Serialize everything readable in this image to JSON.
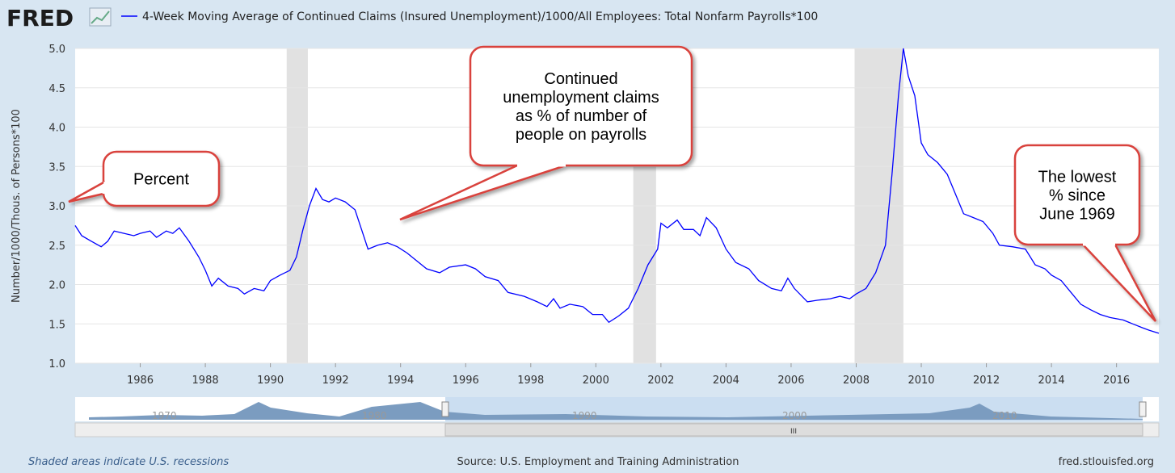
{
  "header": {
    "logo": "FRED"
  },
  "chart_data": {
    "type": "line",
    "y_label": "Number/1000/Thous. of Persons*100",
    "x": [
      1984.0,
      1984.2,
      1984.5,
      1984.8,
      1985.0,
      1985.2,
      1985.5,
      1985.8,
      1986.0,
      1986.3,
      1986.5,
      1986.8,
      1987.0,
      1987.2,
      1987.5,
      1987.8,
      1988.0,
      1988.2,
      1988.4,
      1988.7,
      1989.0,
      1989.2,
      1989.5,
      1989.8,
      1990.0,
      1990.3,
      1990.6,
      1990.8,
      1991.0,
      1991.2,
      1991.4,
      1991.6,
      1991.8,
      1992.0,
      1992.3,
      1992.6,
      1992.8,
      1993.0,
      1993.3,
      1993.6,
      1993.9,
      1994.2,
      1994.5,
      1994.8,
      1995.2,
      1995.5,
      1996.0,
      1996.3,
      1996.6,
      1997.0,
      1997.3,
      1997.8,
      1998.2,
      1998.5,
      1998.7,
      1998.9,
      1999.2,
      1999.6,
      1999.9,
      2000.2,
      2000.4,
      2000.7,
      2001.0,
      2001.3,
      2001.6,
      2001.9,
      2002.0,
      2002.2,
      2002.5,
      2002.7,
      2003.0,
      2003.2,
      2003.4,
      2003.7,
      2004.0,
      2004.3,
      2004.7,
      2005.0,
      2005.4,
      2005.7,
      2005.9,
      2006.1,
      2006.5,
      2006.8,
      2007.2,
      2007.5,
      2007.8,
      2008.0,
      2008.3,
      2008.6,
      2008.9,
      2009.1,
      2009.3,
      2009.45,
      2009.6,
      2009.8,
      2010.0,
      2010.2,
      2010.5,
      2010.8,
      2011.0,
      2011.3,
      2011.6,
      2011.9,
      2012.2,
      2012.4,
      2012.8,
      2013.2,
      2013.5,
      2013.8,
      2014.0,
      2014.3,
      2014.6,
      2014.9,
      2015.2,
      2015.5,
      2015.8,
      2016.2,
      2016.5,
      2016.8,
      2017.0,
      2017.3
    ],
    "series": [
      {
        "name": "4-Week Moving Average of Continued Claims (Insured Unemployment)/1000/All Employees: Total Nonfarm Payrolls*100",
        "color": "#0000ff",
        "values": [
          2.75,
          2.62,
          2.55,
          2.48,
          2.55,
          2.68,
          2.65,
          2.62,
          2.65,
          2.68,
          2.6,
          2.68,
          2.65,
          2.72,
          2.55,
          2.35,
          2.18,
          1.98,
          2.08,
          1.98,
          1.95,
          1.88,
          1.95,
          1.92,
          2.05,
          2.12,
          2.18,
          2.35,
          2.7,
          3.0,
          3.22,
          3.08,
          3.05,
          3.1,
          3.05,
          2.95,
          2.7,
          2.45,
          2.5,
          2.53,
          2.48,
          2.4,
          2.3,
          2.2,
          2.15,
          2.22,
          2.25,
          2.2,
          2.1,
          2.05,
          1.9,
          1.85,
          1.78,
          1.72,
          1.82,
          1.7,
          1.75,
          1.72,
          1.62,
          1.62,
          1.52,
          1.6,
          1.7,
          1.95,
          2.25,
          2.45,
          2.78,
          2.72,
          2.82,
          2.7,
          2.7,
          2.62,
          2.85,
          2.72,
          2.45,
          2.28,
          2.2,
          2.05,
          1.95,
          1.92,
          2.08,
          1.95,
          1.78,
          1.8,
          1.82,
          1.85,
          1.82,
          1.88,
          1.95,
          2.15,
          2.5,
          3.4,
          4.4,
          5.0,
          4.65,
          4.4,
          3.8,
          3.65,
          3.55,
          3.4,
          3.2,
          2.9,
          2.85,
          2.8,
          2.65,
          2.5,
          2.48,
          2.45,
          2.25,
          2.2,
          2.12,
          2.05,
          1.9,
          1.75,
          1.68,
          1.62,
          1.58,
          1.55,
          1.5,
          1.45,
          1.42,
          1.38
        ]
      }
    ],
    "recessions": [
      [
        1990.5,
        1991.15
      ],
      [
        2001.15,
        2001.85
      ],
      [
        2007.95,
        2009.45
      ]
    ],
    "xlim": [
      1984.0,
      2017.3
    ],
    "ylim": [
      1,
      5
    ],
    "xticks": [
      1986,
      1988,
      1990,
      1992,
      1994,
      1996,
      1998,
      2000,
      2002,
      2004,
      2006,
      2008,
      2010,
      2012,
      2014,
      2016
    ],
    "yticks": [
      {
        "value": 1,
        "label": "1.0"
      },
      1.5,
      {
        "value": 2,
        "label": "2.0"
      },
      2.5,
      {
        "value": 3,
        "label": "3.0"
      },
      3.5,
      {
        "value": 4,
        "label": "4.0"
      },
      4.5,
      {
        "value": 5,
        "label": "5.0"
      }
    ],
    "grid": true,
    "annotations": [
      {
        "lines": [
          "Percent"
        ]
      },
      {
        "lines": [
          "Continued",
          "unemployment claims",
          "as % of number of",
          "people on payrolls"
        ]
      },
      {
        "lines": [
          "The lowest",
          "% since",
          "June 1969"
        ]
      }
    ]
  },
  "navigator": {
    "labels": [
      "1970",
      "1980",
      "1990",
      "2000",
      "2010"
    ],
    "scroll": "III"
  },
  "footer": {
    "note": "Shaded areas indicate U.S. recessions",
    "source": "Source: U.S. Employment and Training Administration",
    "site": "fred.stlouisfed.org"
  }
}
